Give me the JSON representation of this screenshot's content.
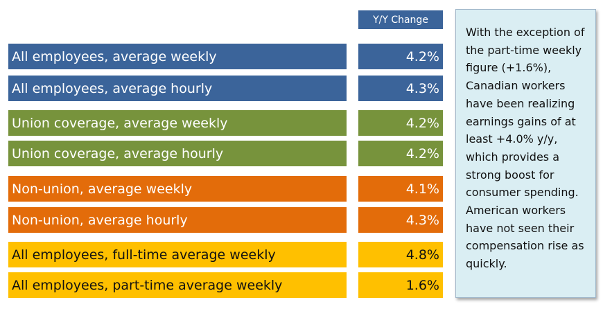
{
  "chart_data": {
    "type": "table",
    "column_header": "Y/Y Change",
    "rows": [
      {
        "label": "All employees, average weekly",
        "value": "4.2%",
        "group": "all"
      },
      {
        "label": "All employees, average hourly",
        "value": "4.3%",
        "group": "all"
      },
      {
        "label": "Union coverage, average weekly",
        "value": "4.2%",
        "group": "union"
      },
      {
        "label": "Union coverage, average hourly",
        "value": "4.2%",
        "group": "union"
      },
      {
        "label": "Non-union, average weekly",
        "value": "4.1%",
        "group": "nonunion"
      },
      {
        "label": "Non-union, average hourly",
        "value": "4.3%",
        "group": "nonunion"
      },
      {
        "label": "All employees, full-time average weekly",
        "value": "4.8%",
        "group": "fullpart"
      },
      {
        "label": "All employees, part-time average weekly",
        "value": "1.6%",
        "group": "fullpart"
      }
    ],
    "group_colors": {
      "all": "#3b649a",
      "union": "#77933c",
      "nonunion": "#e36c0a",
      "fullpart": "#ffc000"
    },
    "header_color": "#3b649a"
  },
  "note": {
    "text": "With the exception of the part-time weekly figure (+1.6%), Canadian workers have been realizing earnings gains of at least +4.0% y/y, which provides a strong boost for consumer spending. American workers have not seen their compensation rise as quickly."
  }
}
